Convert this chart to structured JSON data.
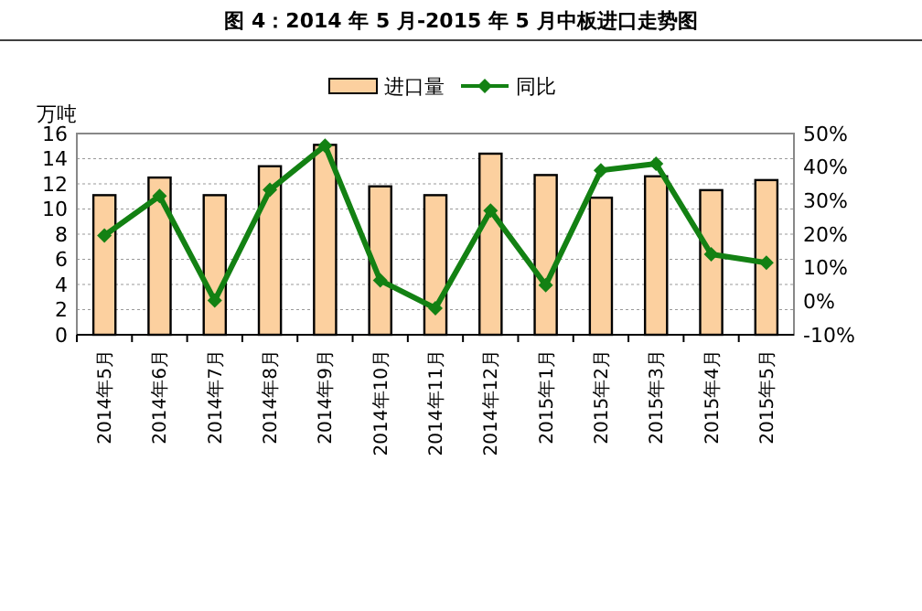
{
  "chart_data": {
    "type": "bar",
    "title": "图 4：2014 年 5 月-2015 年 5 月中板进口走势图",
    "ylabel": "万吨",
    "categories": [
      "2014年5月",
      "2014年6月",
      "2014年7月",
      "2014年8月",
      "2014年9月",
      "2014年10月",
      "2014年11月",
      "2014年12月",
      "2015年1月",
      "2015年2月",
      "2015年3月",
      "2015年4月",
      "2015年5月"
    ],
    "series": [
      {
        "name": "进口量",
        "color": "#fcd09f",
        "values": [
          11.1,
          12.5,
          11.1,
          13.4,
          15.1,
          11.8,
          11.1,
          14.4,
          12.7,
          10.9,
          12.6,
          11.5,
          12.3
        ]
      },
      {
        "name": "同比",
        "type": "line",
        "axis": "y2",
        "color": "#138113",
        "marker": "diamond",
        "line_style": "solid",
        "values": [
          19.6,
          31.4,
          0.2,
          33.2,
          46.4,
          6.2,
          -2.1,
          27,
          4.8,
          39,
          41,
          14,
          11.5
        ]
      }
    ],
    "ylim": [
      0,
      16
    ],
    "yticks": [
      0,
      2,
      4,
      6,
      8,
      10,
      12,
      14,
      16
    ],
    "y2lim": [
      -10,
      50
    ],
    "y2ticks": [
      {
        "value": -10,
        "label": "-10%"
      },
      {
        "value": 0,
        "label": "0%"
      },
      {
        "value": 10,
        "label": "10%"
      },
      {
        "value": 20,
        "label": "20%"
      },
      {
        "value": 30,
        "label": "30%"
      },
      {
        "value": 40,
        "label": "40%"
      },
      {
        "value": 50,
        "label": "50%"
      }
    ],
    "grid": "y",
    "legend": "top"
  }
}
